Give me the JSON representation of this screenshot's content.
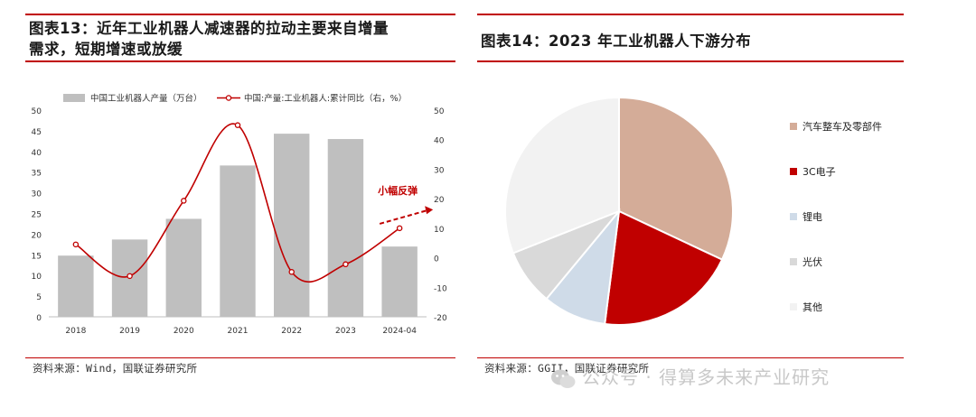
{
  "left": {
    "title": "图表13：近年工业机器人减速器的拉动主要来自增量\n需求，短期增速或放缓",
    "source": "资料来源：Wind，国联证券研究所"
  },
  "right": {
    "title": "图表14：2023 年工业机器人下游分布",
    "source": "资料来源：GGII，国联证券研究所"
  },
  "watermark": "公众号 · 得算多未来产业研究",
  "chart_data": [
    {
      "type": "bar+line",
      "categories": [
        "2018",
        "2019",
        "2020",
        "2021",
        "2022",
        "2023",
        "2024-04"
      ],
      "series": [
        {
          "name": "中国工业机器人产量（万台）",
          "kind": "bar",
          "axis": "left",
          "values": [
            14.8,
            18.7,
            23.7,
            36.6,
            44.3,
            43.0,
            17.0
          ],
          "color": "#bfbfbf"
        },
        {
          "name": "中国:产量:工业机器人:累计同比（右，%）",
          "kind": "line",
          "axis": "right",
          "values": [
            4.5,
            -6.2,
            19.3,
            44.9,
            -4.8,
            -2.2,
            10.0
          ],
          "color": "#c00000"
        }
      ],
      "ylim_left": [
        0,
        50
      ],
      "yticks_left": [
        "0",
        "5",
        "10",
        "15",
        "20",
        "25",
        "30",
        "35",
        "40",
        "45",
        "50"
      ],
      "ylim_right": [
        -20,
        50
      ],
      "yticks_right": [
        "-20",
        "-10",
        "0",
        "10",
        "20",
        "30",
        "40",
        "50"
      ],
      "annotation": {
        "text": "小幅反弹",
        "color": "#c00000"
      },
      "legend_position": "top",
      "grid": false
    },
    {
      "type": "pie",
      "labels": [
        "汽车整车及零部件",
        "3C电子",
        "锂电",
        "光伏",
        "其他"
      ],
      "values": [
        32,
        20,
        9,
        8,
        31
      ],
      "colors": [
        "#d4ac98",
        "#c00000",
        "#cfdbe8",
        "#d9d9d9",
        "#f2f2f2"
      ],
      "legend_position": "right"
    }
  ]
}
